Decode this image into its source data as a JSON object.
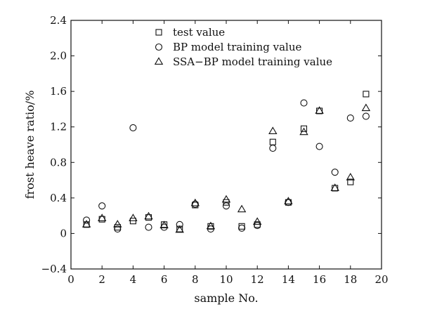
{
  "chart_data": {
    "type": "scatter",
    "title": "",
    "xlabel": "sample No.",
    "ylabel": "frost heave ratio/%",
    "xlim": [
      0,
      20
    ],
    "ylim": [
      -0.4,
      2.4
    ],
    "xticks": [
      0,
      2,
      4,
      6,
      8,
      10,
      12,
      14,
      16,
      18,
      20
    ],
    "yticks": [
      -0.4,
      0.0,
      0.4,
      0.8,
      1.2,
      1.6,
      2.0,
      2.4
    ],
    "xtick_labels": [
      "0",
      "2",
      "4",
      "6",
      "8",
      "10",
      "12",
      "14",
      "16",
      "18",
      "20"
    ],
    "ytick_labels": [
      "−0.4",
      "0",
      "0.4",
      "0.8",
      "1.2",
      "1.6",
      "2.0",
      "2.4"
    ],
    "grid": false,
    "legend_position": "top-center",
    "series": [
      {
        "name": "test value",
        "marker": "square",
        "x": [
          1,
          2,
          3,
          4,
          5,
          6,
          7,
          8,
          9,
          10,
          11,
          12,
          13,
          14,
          15,
          16,
          17,
          18,
          19
        ],
        "y": [
          0.1,
          0.16,
          0.07,
          0.14,
          0.18,
          0.1,
          0.05,
          0.32,
          0.08,
          0.35,
          0.08,
          0.1,
          1.03,
          0.35,
          1.18,
          1.38,
          0.51,
          0.58,
          1.57
        ]
      },
      {
        "name": "BP model training value",
        "marker": "circle",
        "x": [
          1,
          2,
          3,
          4,
          5,
          6,
          7,
          8,
          9,
          10,
          11,
          12,
          13,
          14,
          15,
          16,
          17,
          18,
          19
        ],
        "y": [
          0.15,
          0.31,
          0.05,
          1.19,
          0.07,
          0.07,
          0.1,
          0.33,
          0.05,
          0.31,
          0.06,
          0.09,
          0.96,
          0.35,
          1.47,
          0.98,
          0.69,
          1.3,
          1.32
        ]
      },
      {
        "name": "SSA−BP model training value",
        "marker": "triangle",
        "x": [
          1,
          2,
          3,
          4,
          5,
          6,
          7,
          8,
          9,
          10,
          11,
          12,
          13,
          14,
          15,
          16,
          17,
          18,
          19
        ],
        "y": [
          0.1,
          0.17,
          0.1,
          0.17,
          0.19,
          0.09,
          0.04,
          0.34,
          0.08,
          0.38,
          0.27,
          0.13,
          1.15,
          0.36,
          1.14,
          1.38,
          0.51,
          0.63,
          1.41
        ]
      }
    ]
  }
}
